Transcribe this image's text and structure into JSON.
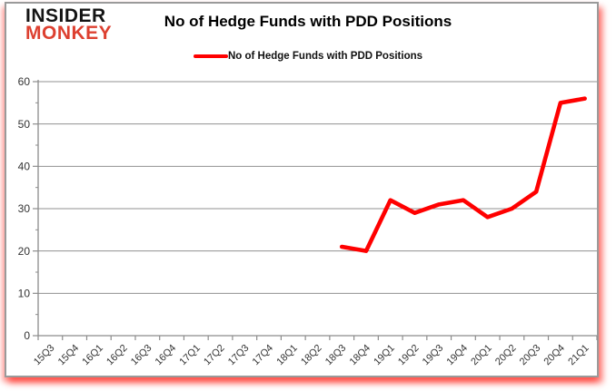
{
  "brand": {
    "line1": "INSIDER",
    "line2": "MONKEY",
    "line2_color": "#dd4030"
  },
  "title": "No of Hedge Funds with PDD Positions",
  "legend": {
    "label": "No of Hedge Funds with PDD Positions",
    "swatch_color": "#ff0000"
  },
  "frame": {
    "border_color": "#9a9a9a",
    "glow_color": "#ff0000"
  },
  "chart_data": {
    "type": "line",
    "title": "No of Hedge Funds with PDD Positions",
    "categories": [
      "15Q3",
      "15Q4",
      "16Q1",
      "16Q2",
      "16Q3",
      "16Q4",
      "17Q1",
      "17Q2",
      "17Q3",
      "17Q4",
      "18Q1",
      "18Q2",
      "18Q3",
      "18Q4",
      "19Q1",
      "19Q2",
      "19Q3",
      "19Q4",
      "20Q1",
      "20Q2",
      "20Q3",
      "20Q4",
      "21Q1"
    ],
    "series": [
      {
        "name": "No of Hedge Funds with PDD Positions",
        "color": "#ff0000",
        "values": [
          null,
          null,
          null,
          null,
          null,
          null,
          null,
          null,
          null,
          null,
          null,
          null,
          21,
          20,
          32,
          29,
          31,
          32,
          28,
          30,
          34,
          55,
          56
        ]
      }
    ],
    "ylim": [
      0,
      60
    ],
    "yticks": [
      0,
      10,
      20,
      30,
      40,
      50,
      60
    ],
    "y_minor_step": 5,
    "grid": "horizontal",
    "legend_position": "top",
    "axis_color": "#8c8c8c",
    "grid_color": "#909090",
    "tick_label_color": "#333333"
  }
}
